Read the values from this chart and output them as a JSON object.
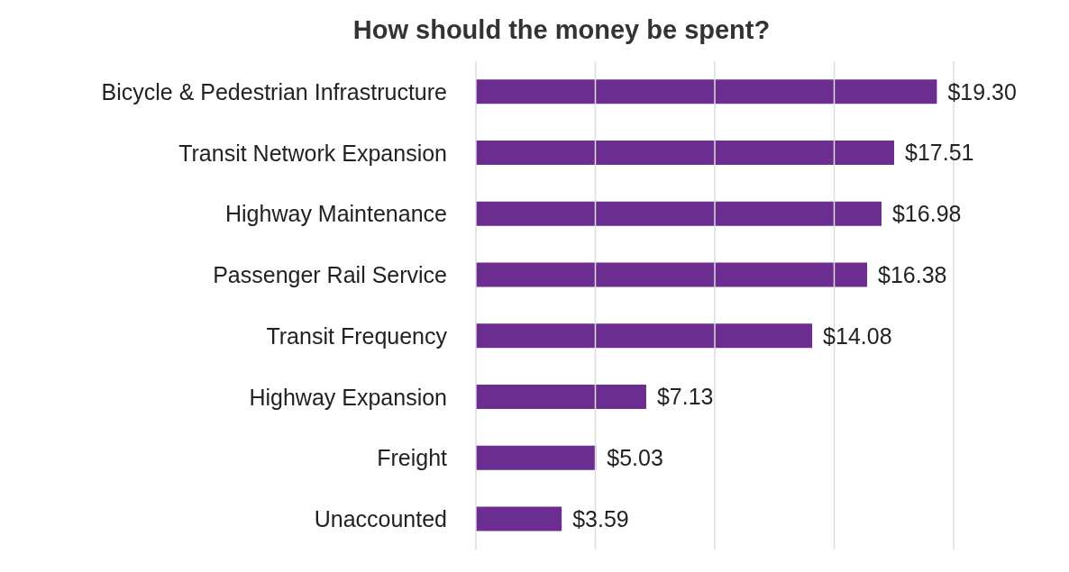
{
  "chart_data": {
    "type": "bar",
    "orientation": "horizontal",
    "title": "How should the money be spent?",
    "categories": [
      "Bicycle & Pedestrian Infrastructure",
      "Transit Network Expansion",
      "Highway Maintenance",
      "Passenger Rail Service",
      "Transit Frequency",
      "Highway Expansion",
      "Freight",
      "Unaccounted"
    ],
    "values": [
      19.3,
      17.51,
      16.98,
      16.38,
      14.08,
      7.13,
      5.03,
      3.59
    ],
    "value_labels": [
      "$19.30",
      "$17.51",
      "$16.98",
      "$16.38",
      "$14.08",
      "$7.13",
      "$5.03",
      "$3.59"
    ],
    "color": "#6b2d8f",
    "xlim": [
      0,
      20
    ],
    "xticks": [
      {
        "value": 0,
        "label": null
      },
      {
        "value": 5,
        "label": null
      },
      {
        "value": 10,
        "label": null
      },
      {
        "value": 15,
        "label": null
      },
      {
        "value": 20,
        "label": null
      }
    ],
    "grid": "x",
    "tick_labels": "y"
  }
}
